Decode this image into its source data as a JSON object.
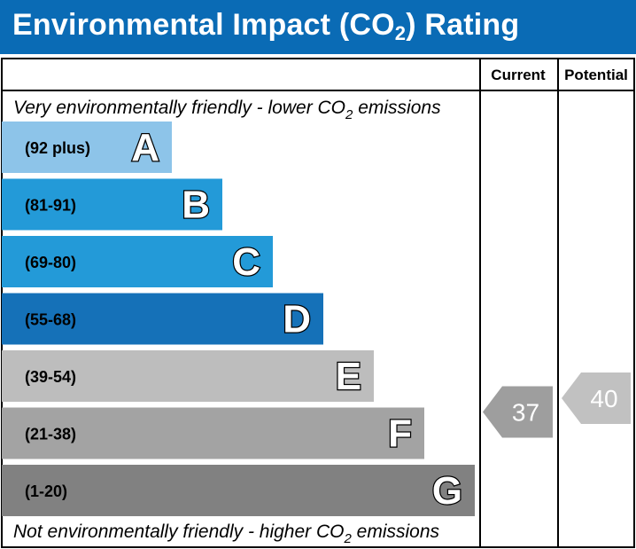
{
  "header": {
    "title_prefix": "Environmental Impact (CO",
    "title_sub": "2",
    "title_suffix": ") Rating"
  },
  "columns": {
    "current": "Current",
    "potential": "Potential"
  },
  "notes": {
    "top_prefix": "Very environmentally friendly - lower CO",
    "top_sub": "2",
    "top_suffix": " emissions",
    "bottom_prefix": "Not environmentally friendly - higher CO",
    "bottom_sub": "2",
    "bottom_suffix": " emissions"
  },
  "chart_data": {
    "type": "bar",
    "title": "Environmental Impact (CO2) Rating",
    "categories": [
      "A",
      "B",
      "C",
      "D",
      "E",
      "F",
      "G"
    ],
    "ranges": [
      "(92 plus)",
      "(81-91)",
      "(69-80)",
      "(55-68)",
      "(39-54)",
      "(21-38)",
      "(1-20)"
    ],
    "colors": [
      "#8dc4e9",
      "#239ad8",
      "#239ad8",
      "#1571b8",
      "#bdbdbd",
      "#a3a3a3",
      "#818181"
    ],
    "current": {
      "value": 37,
      "band": "F",
      "color": "#9e9e9e"
    },
    "potential": {
      "value": 40,
      "band": "E",
      "color": "#c1c1c1"
    }
  }
}
